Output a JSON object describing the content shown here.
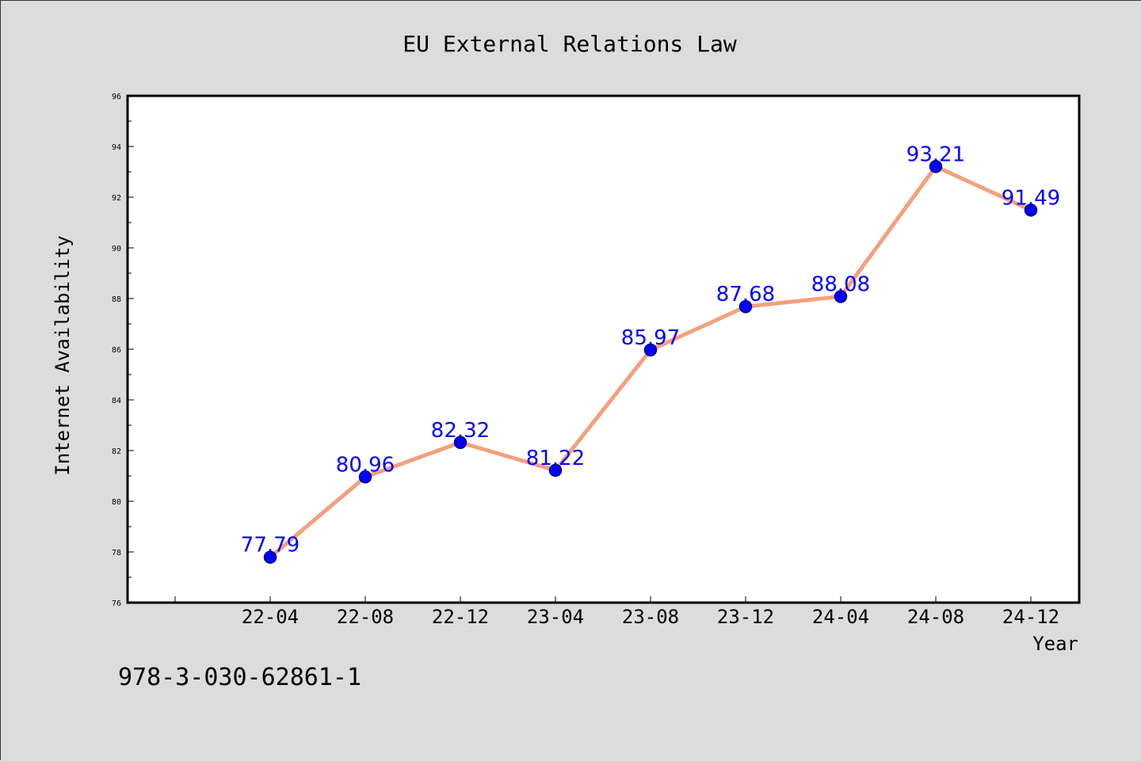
{
  "colors": {
    "figure_background": "#dcdcdc",
    "plot_background": "#ffffff",
    "line": "#f4a07e",
    "marker_fill": "#0000ff",
    "marker_edge": "#000080",
    "data_label": "#0000ff",
    "axes": "#000000"
  },
  "footer": {
    "text": "978-3-030-62861-1"
  },
  "chart_data": {
    "type": "line",
    "title": "EU External Relations Law",
    "xlabel": "Year",
    "ylabel": "Internet Availability",
    "categories": [
      "22-04",
      "22-08",
      "22-12",
      "23-04",
      "23-08",
      "23-12",
      "24-04",
      "24-08",
      "24-12"
    ],
    "series": [
      {
        "values": [
          77.79,
          80.96,
          82.32,
          81.22,
          85.97,
          87.68,
          88.08,
          93.21,
          91.49
        ],
        "data_labels": [
          "77.79",
          "80.96",
          "82.32",
          "81.22",
          "85.97",
          "87.68",
          "88.08",
          "93.21",
          "91.49"
        ],
        "marker": "circle"
      }
    ],
    "ylim": [
      76,
      96
    ],
    "yticks": [
      76,
      78,
      80,
      82,
      84,
      86,
      88,
      90,
      92,
      94,
      96
    ],
    "y_minor_step": 1,
    "x_leading_empty_slots": 1,
    "grid": false,
    "legend": "none"
  }
}
